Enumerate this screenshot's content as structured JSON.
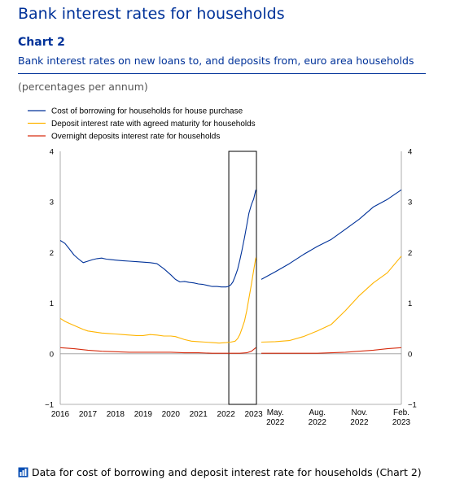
{
  "page": {
    "title": "Bank interest rates for households",
    "chart_label": "Chart 2",
    "chart_subtitle": "Bank interest rates on new loans to, and deposits from, euro area households",
    "units": "(percentages per annum)",
    "footer_link": "Data for cost of borrowing and deposit interest rate for households (Chart 2)",
    "footer_icon": "download-chart-icon"
  },
  "colors": {
    "blue": "#003299",
    "yellow": "#ffb400",
    "red": "#d62d10",
    "axis": "#999999",
    "frame": "#000000"
  },
  "chart_data": {
    "type": "line",
    "ylim": [
      -1,
      4
    ],
    "yticks": [
      -1,
      0,
      1,
      2,
      3,
      4
    ],
    "legend_placement": "top-left",
    "grid": false,
    "left_panel": {
      "xlim": [
        2016.0,
        2023.1
      ],
      "xticks": [
        "2016",
        "2017",
        "2018",
        "2019",
        "2020",
        "2021",
        "2022",
        "2023"
      ],
      "highlight": [
        2022.1,
        2023.1
      ],
      "series": [
        {
          "name": "Cost of borrowing for households for house purchase",
          "color_key": "blue",
          "x": [
            2016.0,
            2016.17,
            2016.33,
            2016.5,
            2016.67,
            2016.83,
            2017.0,
            2017.17,
            2017.33,
            2017.5,
            2017.67,
            2017.83,
            2018.0,
            2018.25,
            2018.5,
            2018.75,
            2019.0,
            2019.25,
            2019.5,
            2019.75,
            2020.0,
            2020.17,
            2020.33,
            2020.5,
            2020.67,
            2020.83,
            2021.0,
            2021.17,
            2021.33,
            2021.5,
            2021.67,
            2021.83,
            2022.0,
            2022.08,
            2022.17,
            2022.25,
            2022.33,
            2022.42,
            2022.5,
            2022.58,
            2022.67,
            2022.75,
            2022.83,
            2022.92,
            2023.0,
            2023.08
          ],
          "y": [
            2.24,
            2.18,
            2.07,
            1.95,
            1.87,
            1.8,
            1.83,
            1.86,
            1.88,
            1.89,
            1.87,
            1.86,
            1.85,
            1.84,
            1.83,
            1.82,
            1.81,
            1.8,
            1.78,
            1.68,
            1.56,
            1.47,
            1.42,
            1.43,
            1.41,
            1.4,
            1.38,
            1.37,
            1.35,
            1.33,
            1.33,
            1.32,
            1.32,
            1.33,
            1.36,
            1.42,
            1.53,
            1.67,
            1.85,
            2.05,
            2.3,
            2.54,
            2.78,
            2.95,
            3.06,
            3.24
          ]
        },
        {
          "name": "Deposit interest rate with agreed maturity for households",
          "color_key": "yellow",
          "x": [
            2016.0,
            2016.17,
            2016.33,
            2016.5,
            2016.67,
            2016.83,
            2017.0,
            2017.25,
            2017.5,
            2017.75,
            2018.0,
            2018.25,
            2018.5,
            2018.75,
            2019.0,
            2019.25,
            2019.5,
            2019.75,
            2020.0,
            2020.17,
            2020.33,
            2020.5,
            2020.75,
            2021.0,
            2021.25,
            2021.5,
            2021.75,
            2022.0,
            2022.17,
            2022.33,
            2022.42,
            2022.5,
            2022.58,
            2022.67,
            2022.75,
            2022.83,
            2022.92,
            2023.0,
            2023.08
          ],
          "y": [
            0.7,
            0.64,
            0.6,
            0.56,
            0.52,
            0.48,
            0.45,
            0.43,
            0.41,
            0.4,
            0.39,
            0.38,
            0.37,
            0.36,
            0.36,
            0.38,
            0.37,
            0.35,
            0.35,
            0.34,
            0.31,
            0.28,
            0.25,
            0.24,
            0.23,
            0.22,
            0.21,
            0.22,
            0.23,
            0.25,
            0.3,
            0.38,
            0.5,
            0.65,
            0.85,
            1.1,
            1.38,
            1.65,
            1.9
          ]
        },
        {
          "name": "Overnight deposits interest rate for households",
          "color_key": "red",
          "x": [
            2016.0,
            2016.5,
            2017.0,
            2017.5,
            2018.0,
            2018.5,
            2019.0,
            2019.5,
            2020.0,
            2020.5,
            2021.0,
            2021.5,
            2022.0,
            2022.5,
            2022.75,
            2022.92,
            2023.08
          ],
          "y": [
            0.12,
            0.1,
            0.07,
            0.05,
            0.04,
            0.03,
            0.03,
            0.03,
            0.03,
            0.02,
            0.02,
            0.01,
            0.01,
            0.01,
            0.02,
            0.05,
            0.12
          ]
        }
      ]
    },
    "right_panel": {
      "xlim": [
        0,
        10
      ],
      "xticks": [
        {
          "x": 1,
          "label": [
            "May.",
            "2022"
          ]
        },
        {
          "x": 4,
          "label": [
            "Aug.",
            "2022"
          ]
        },
        {
          "x": 7,
          "label": [
            "Nov.",
            "2022"
          ]
        },
        {
          "x": 10,
          "label": [
            "Feb.",
            "2023"
          ]
        }
      ],
      "series": [
        {
          "name": "Cost of borrowing for households for house purchase",
          "color_key": "blue",
          "x": [
            0,
            1,
            2,
            3,
            4,
            5,
            6,
            7,
            8,
            9,
            10
          ],
          "y": [
            1.47,
            1.62,
            1.78,
            1.96,
            2.12,
            2.26,
            2.46,
            2.66,
            2.9,
            3.05,
            3.24
          ]
        },
        {
          "name": "Deposit interest rate with agreed maturity for households",
          "color_key": "yellow",
          "x": [
            0,
            1,
            2,
            3,
            4,
            5,
            6,
            7,
            8,
            9,
            10
          ],
          "y": [
            0.23,
            0.24,
            0.26,
            0.34,
            0.45,
            0.58,
            0.85,
            1.15,
            1.4,
            1.6,
            1.93
          ]
        },
        {
          "name": "Overnight deposits interest rate for households",
          "color_key": "red",
          "x": [
            0,
            1,
            2,
            3,
            4,
            5,
            6,
            7,
            8,
            9,
            10
          ],
          "y": [
            0.01,
            0.01,
            0.01,
            0.01,
            0.01,
            0.02,
            0.03,
            0.05,
            0.07,
            0.1,
            0.12
          ]
        }
      ]
    }
  }
}
